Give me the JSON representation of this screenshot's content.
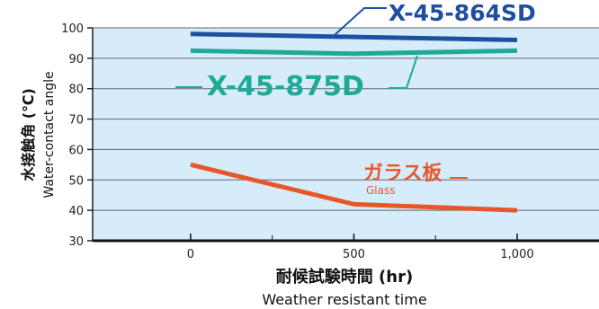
{
  "chart_data": {
    "type": "line",
    "x": [
      0,
      500,
      1000
    ],
    "xticks": [
      "0",
      "500",
      "1,000"
    ],
    "xlim": [
      -300,
      1000
    ],
    "ylim": [
      30,
      100
    ],
    "yticks": [
      30,
      40,
      50,
      60,
      70,
      80,
      90,
      100
    ],
    "xlabel": "耐候試験時間 (hr)",
    "xlabel_en": "Weather resistant time",
    "ylabel": "水接触角 (℃)",
    "ylabel_en": "Water-contact angle",
    "grid": true,
    "series": [
      {
        "name": "X-45-864SD",
        "values": [
          98,
          97,
          96
        ],
        "color": "#1f4fa0"
      },
      {
        "name": "X-45-875D",
        "values": [
          92.5,
          91.5,
          92.5
        ],
        "color": "#1faa98"
      },
      {
        "name": "ガラス板",
        "name_en": "Glass",
        "values": [
          55,
          42,
          40
        ],
        "color": "#e8572a"
      }
    ]
  }
}
